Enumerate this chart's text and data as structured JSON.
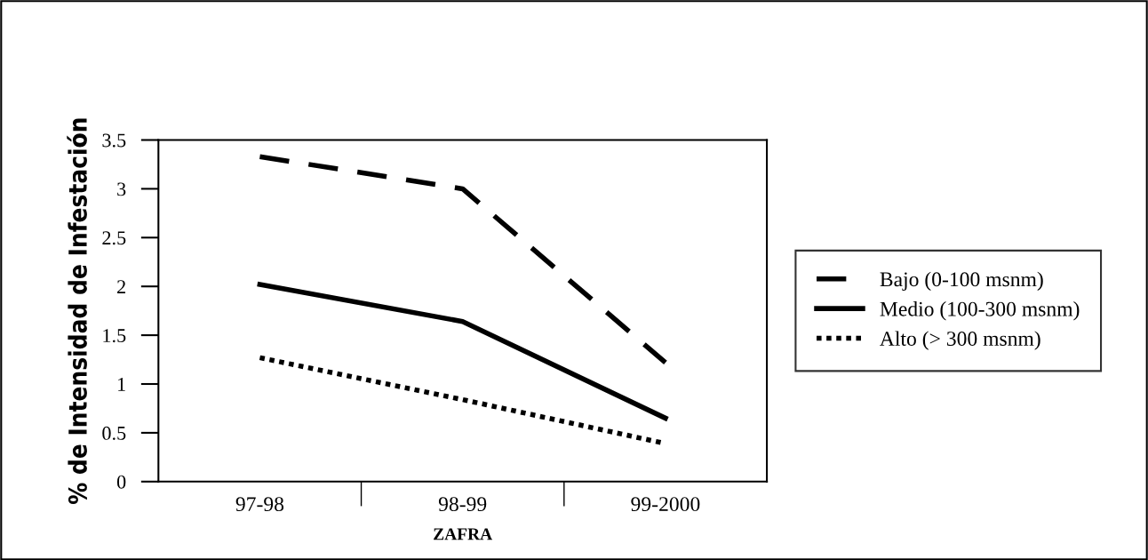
{
  "chart_data": {
    "type": "line",
    "xlabel": "ZAFRA",
    "ylabel": "% de Intensidad de Infestación",
    "categories": [
      "97-98",
      "98-99",
      "99-2000"
    ],
    "series": [
      {
        "name": "Bajo (0-100 msnm)",
        "color": "#000000",
        "line_style": "dashed",
        "values": [
          3.33,
          3.0,
          1.22
        ]
      },
      {
        "name": "Medio (100-300 msnm)",
        "color": "#000000",
        "line_style": "solid",
        "values": [
          2.02,
          1.64,
          0.65
        ]
      },
      {
        "name": "Alto (> 300 msnm)",
        "color": "#000000",
        "line_style": "dotted",
        "values": [
          1.27,
          0.84,
          0.39
        ]
      }
    ],
    "ylim": [
      0,
      3.5
    ],
    "yticks": [
      0,
      0.5,
      1,
      1.5,
      2,
      2.5,
      3,
      3.5
    ],
    "grid": false,
    "legend": "right"
  }
}
